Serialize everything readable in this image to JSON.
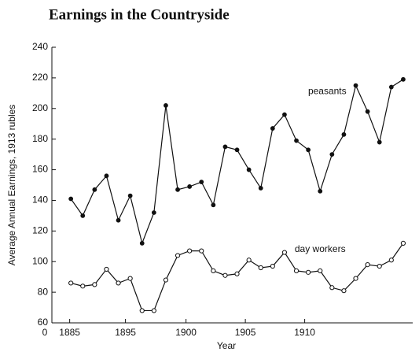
{
  "chart_data": {
    "type": "line",
    "title": "Earnings in the Countryside",
    "xlabel": "Year",
    "ylabel": "Average Annual Earnings, 1913 rubles",
    "x": [
      1885,
      1886,
      1887,
      1888,
      1889,
      1890,
      1891,
      1892,
      1893,
      1894,
      1895,
      1896,
      1897,
      1898,
      1899,
      1900,
      1901,
      1902,
      1903,
      1904,
      1905,
      1906,
      1907,
      1908,
      1909,
      1910,
      1911,
      1912,
      1913
    ],
    "series": [
      {
        "name": "peasants",
        "color": "#111111",
        "marker": "filled",
        "values": [
          141,
          130,
          147,
          156,
          127,
          143,
          112,
          132,
          202,
          147,
          149,
          152,
          137,
          175,
          173,
          160,
          148,
          187,
          196,
          179,
          173,
          146,
          170,
          183,
          215,
          198,
          178,
          214,
          219
        ]
      },
      {
        "name": "day workers",
        "color": "#111111",
        "marker": "hollow",
        "values": [
          86,
          84,
          85,
          95,
          86,
          89,
          68,
          68,
          88,
          104,
          107,
          107,
          94,
          91,
          92,
          101,
          96,
          97,
          106,
          94,
          93,
          94,
          83,
          81,
          89,
          98,
          97,
          101,
          112
        ]
      }
    ],
    "xlim": [
      1883.4,
      1913.8
    ],
    "xticks": [
      {
        "value": 1883.4,
        "label": "0"
      },
      {
        "value": 1884.9,
        "label": "1885"
      },
      {
        "value": 1889.6,
        "label": "1895"
      },
      {
        "value": 1894.7,
        "label": "1900"
      },
      {
        "value": 1899.7,
        "label": "1905"
      },
      {
        "value": 1904.7,
        "label": "1910"
      }
    ],
    "ylim": [
      60,
      240
    ],
    "yticks": [
      60,
      80,
      100,
      120,
      140,
      160,
      180,
      200,
      220,
      240
    ],
    "annotations": [
      {
        "text": "peasants",
        "x": 1906.6,
        "y": 211
      },
      {
        "text": "day workers",
        "x": 1906.0,
        "y": 108
      }
    ]
  }
}
